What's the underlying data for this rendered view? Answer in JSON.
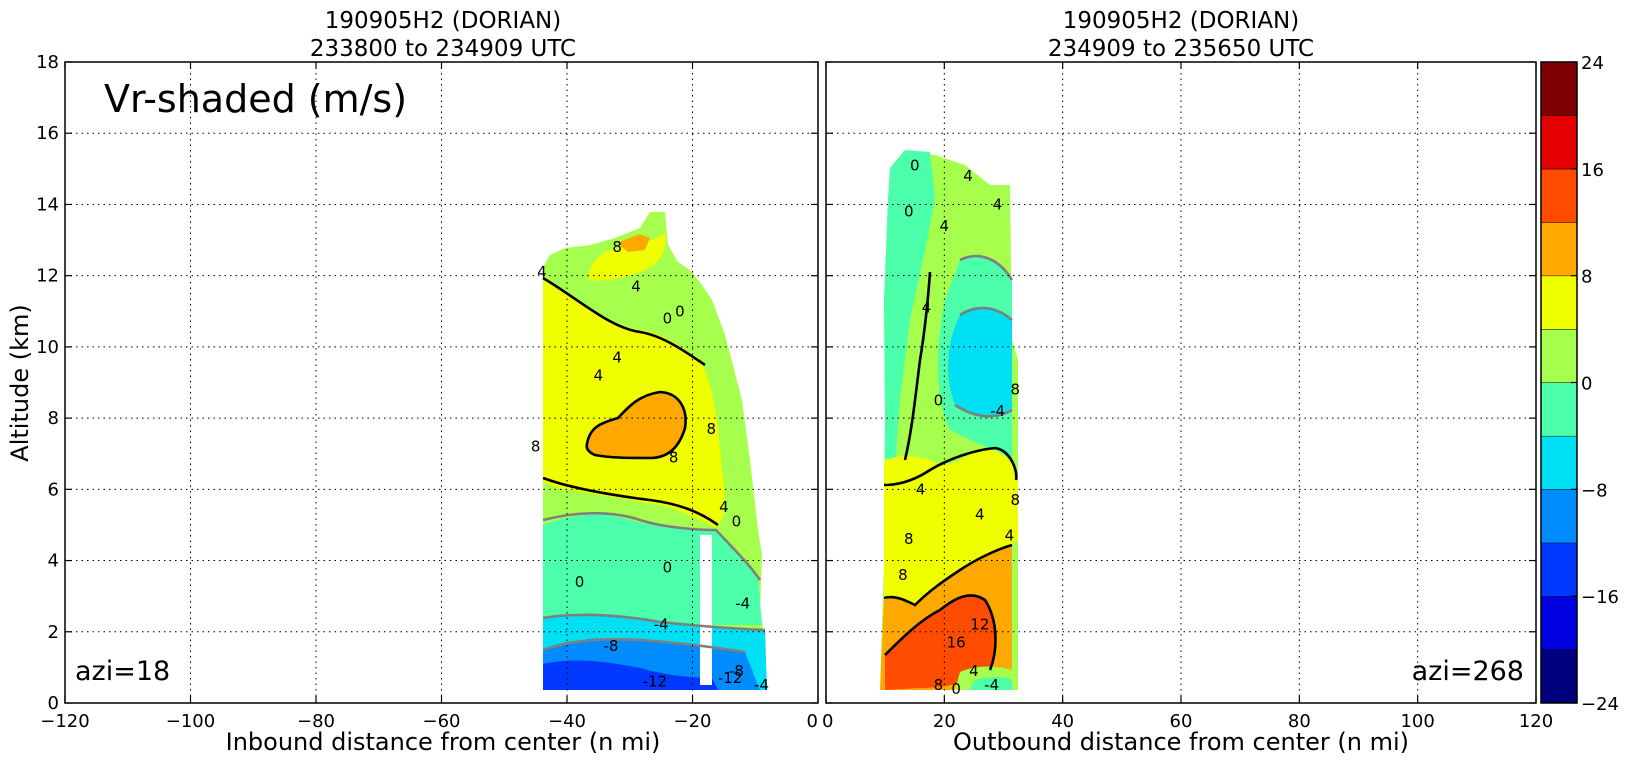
{
  "chart_data": [
    {
      "type": "heatmap",
      "panel": "left",
      "title_line1": "190905H2 (DORIAN)",
      "title_line2": "233800 to 234909 UTC",
      "xlabel": "Inbound distance from center (n mi)",
      "ylabel": "Altitude (km)",
      "xlim": [
        -120,
        0
      ],
      "ylim": [
        0,
        18
      ],
      "x_ticks": [
        -120,
        -100,
        -80,
        -60,
        -40,
        -20,
        0
      ],
      "y_ticks": [
        0,
        2,
        4,
        6,
        8,
        10,
        12,
        14,
        16,
        18
      ],
      "grid": true,
      "annotation": "Vr-shaded (m/s)",
      "azimuth_label": "azi=18",
      "contour_labels": [
        {
          "text": "8",
          "x": -32,
          "y": 12.8
        },
        {
          "text": "4",
          "x": -44,
          "y": 12.1
        },
        {
          "text": "4",
          "x": -29,
          "y": 11.7
        },
        {
          "text": "0",
          "x": -22,
          "y": 11.0
        },
        {
          "text": "0",
          "x": -24,
          "y": 10.8
        },
        {
          "text": "4",
          "x": -32,
          "y": 9.7
        },
        {
          "text": "4",
          "x": -35,
          "y": 9.2
        },
        {
          "text": "8",
          "x": -17,
          "y": 7.7
        },
        {
          "text": "8",
          "x": -45,
          "y": 7.2
        },
        {
          "text": "8",
          "x": -23,
          "y": 6.9
        },
        {
          "text": "4",
          "x": -15,
          "y": 5.5
        },
        {
          "text": "0",
          "x": -13,
          "y": 5.1
        },
        {
          "text": "0",
          "x": -24,
          "y": 3.8
        },
        {
          "text": "0",
          "x": -38,
          "y": 3.4
        },
        {
          "text": "-4",
          "x": -12,
          "y": 2.8
        },
        {
          "text": "-4",
          "x": -25,
          "y": 2.2
        },
        {
          "text": "-8",
          "x": -33,
          "y": 1.6
        },
        {
          "text": "-8",
          "x": -13,
          "y": 0.9
        },
        {
          "text": "-12",
          "x": -26,
          "y": 0.6
        },
        {
          "text": "-12",
          "x": -14,
          "y": 0.7
        },
        {
          "text": "-4",
          "x": -9,
          "y": 0.5
        }
      ]
    },
    {
      "type": "heatmap",
      "panel": "right",
      "title_line1": "190905H2 (DORIAN)",
      "title_line2": "234909 to 235650 UTC",
      "xlabel": "Outbound distance from center (n mi)",
      "xlim": [
        0,
        120
      ],
      "ylim": [
        0,
        18
      ],
      "x_ticks": [
        0,
        20,
        40,
        60,
        80,
        100,
        120
      ],
      "grid": true,
      "azimuth_label": "azi=268",
      "contour_labels": [
        {
          "text": "0",
          "x": 15,
          "y": 15.1
        },
        {
          "text": "4",
          "x": 24,
          "y": 14.8
        },
        {
          "text": "4",
          "x": 29,
          "y": 14.0
        },
        {
          "text": "0",
          "x": 14,
          "y": 13.8
        },
        {
          "text": "4",
          "x": 20,
          "y": 13.4
        },
        {
          "text": "4",
          "x": 17,
          "y": 11.1
        },
        {
          "text": "8",
          "x": 32,
          "y": 8.8
        },
        {
          "text": "0",
          "x": 19,
          "y": 8.5
        },
        {
          "text": "-4",
          "x": 29,
          "y": 8.2
        },
        {
          "text": "4",
          "x": 16,
          "y": 6.0
        },
        {
          "text": "8",
          "x": 32,
          "y": 5.7
        },
        {
          "text": "4",
          "x": 26,
          "y": 5.3
        },
        {
          "text": "4",
          "x": 31,
          "y": 4.7
        },
        {
          "text": "8",
          "x": 14,
          "y": 4.6
        },
        {
          "text": "8",
          "x": 13,
          "y": 3.6
        },
        {
          "text": "12",
          "x": 26,
          "y": 2.2
        },
        {
          "text": "16",
          "x": 22,
          "y": 1.7
        },
        {
          "text": "4",
          "x": 25,
          "y": 0.9
        },
        {
          "text": "8",
          "x": 19,
          "y": 0.5
        },
        {
          "text": "0",
          "x": 22,
          "y": 0.4
        },
        {
          "text": "-4",
          "x": 28,
          "y": 0.5
        }
      ]
    }
  ],
  "colorbar": {
    "levels": [
      -24,
      -20,
      -16,
      -12,
      -8,
      -4,
      0,
      4,
      8,
      12,
      16,
      20,
      24
    ],
    "colors": [
      "#00007f",
      "#0000e0",
      "#0038ff",
      "#008cff",
      "#00e0f4",
      "#4cffaa",
      "#a6ff4c",
      "#f0ff00",
      "#ffa800",
      "#ff4c00",
      "#e40000",
      "#7f0000"
    ],
    "tick_labels": [
      "24",
      "16",
      "8",
      "0",
      "−8",
      "−16",
      "−24"
    ],
    "tick_values": [
      24,
      16,
      8,
      0,
      -8,
      -16,
      -24
    ]
  }
}
